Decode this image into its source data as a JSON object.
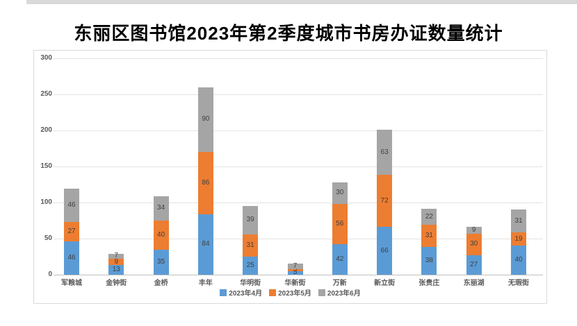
{
  "page": {
    "title": "东丽区图书馆2023年第2季度城市书房办证数量统计"
  },
  "chart_data": {
    "type": "bar",
    "stacked": true,
    "title": "东丽区图书馆2023年第2季度城市书房办证数量统计",
    "categories": [
      "军粮城",
      "金钟街",
      "金桥",
      "丰年",
      "华明街",
      "华新街",
      "万新",
      "新立街",
      "张贵庄",
      "东丽湖",
      "无瑕街"
    ],
    "series": [
      {
        "name": "2023年4月",
        "color": "#5B9BD5",
        "values": [
          46,
          13,
          35,
          84,
          25,
          5,
          42,
          66,
          38,
          27,
          40
        ]
      },
      {
        "name": "2023年5月",
        "color": "#ED7D31",
        "values": [
          27,
          9,
          40,
          86,
          31,
          3,
          56,
          72,
          31,
          30,
          19
        ]
      },
      {
        "name": "2023年6月",
        "color": "#A5A5A5",
        "values": [
          46,
          7,
          34,
          90,
          39,
          7,
          30,
          63,
          22,
          9,
          31
        ]
      }
    ],
    "totals": [
      119,
      29,
      109,
      260,
      95,
      15,
      128,
      201,
      91,
      66,
      90
    ],
    "xlabel": "",
    "ylabel": "",
    "ylim": [
      0,
      300
    ],
    "ytick_step": 50,
    "yticks": [
      0,
      50,
      100,
      150,
      200,
      250,
      300
    ],
    "grid": true,
    "data_labels": true,
    "legend_position": "bottom"
  },
  "colors": {
    "april_blue": "#5B9BD5",
    "may_orange": "#ED7D31",
    "june_gray": "#A5A5A5",
    "axis_text": "#595959",
    "gridline": "#E3E3E3",
    "chart_border": "#D9D9D9"
  }
}
